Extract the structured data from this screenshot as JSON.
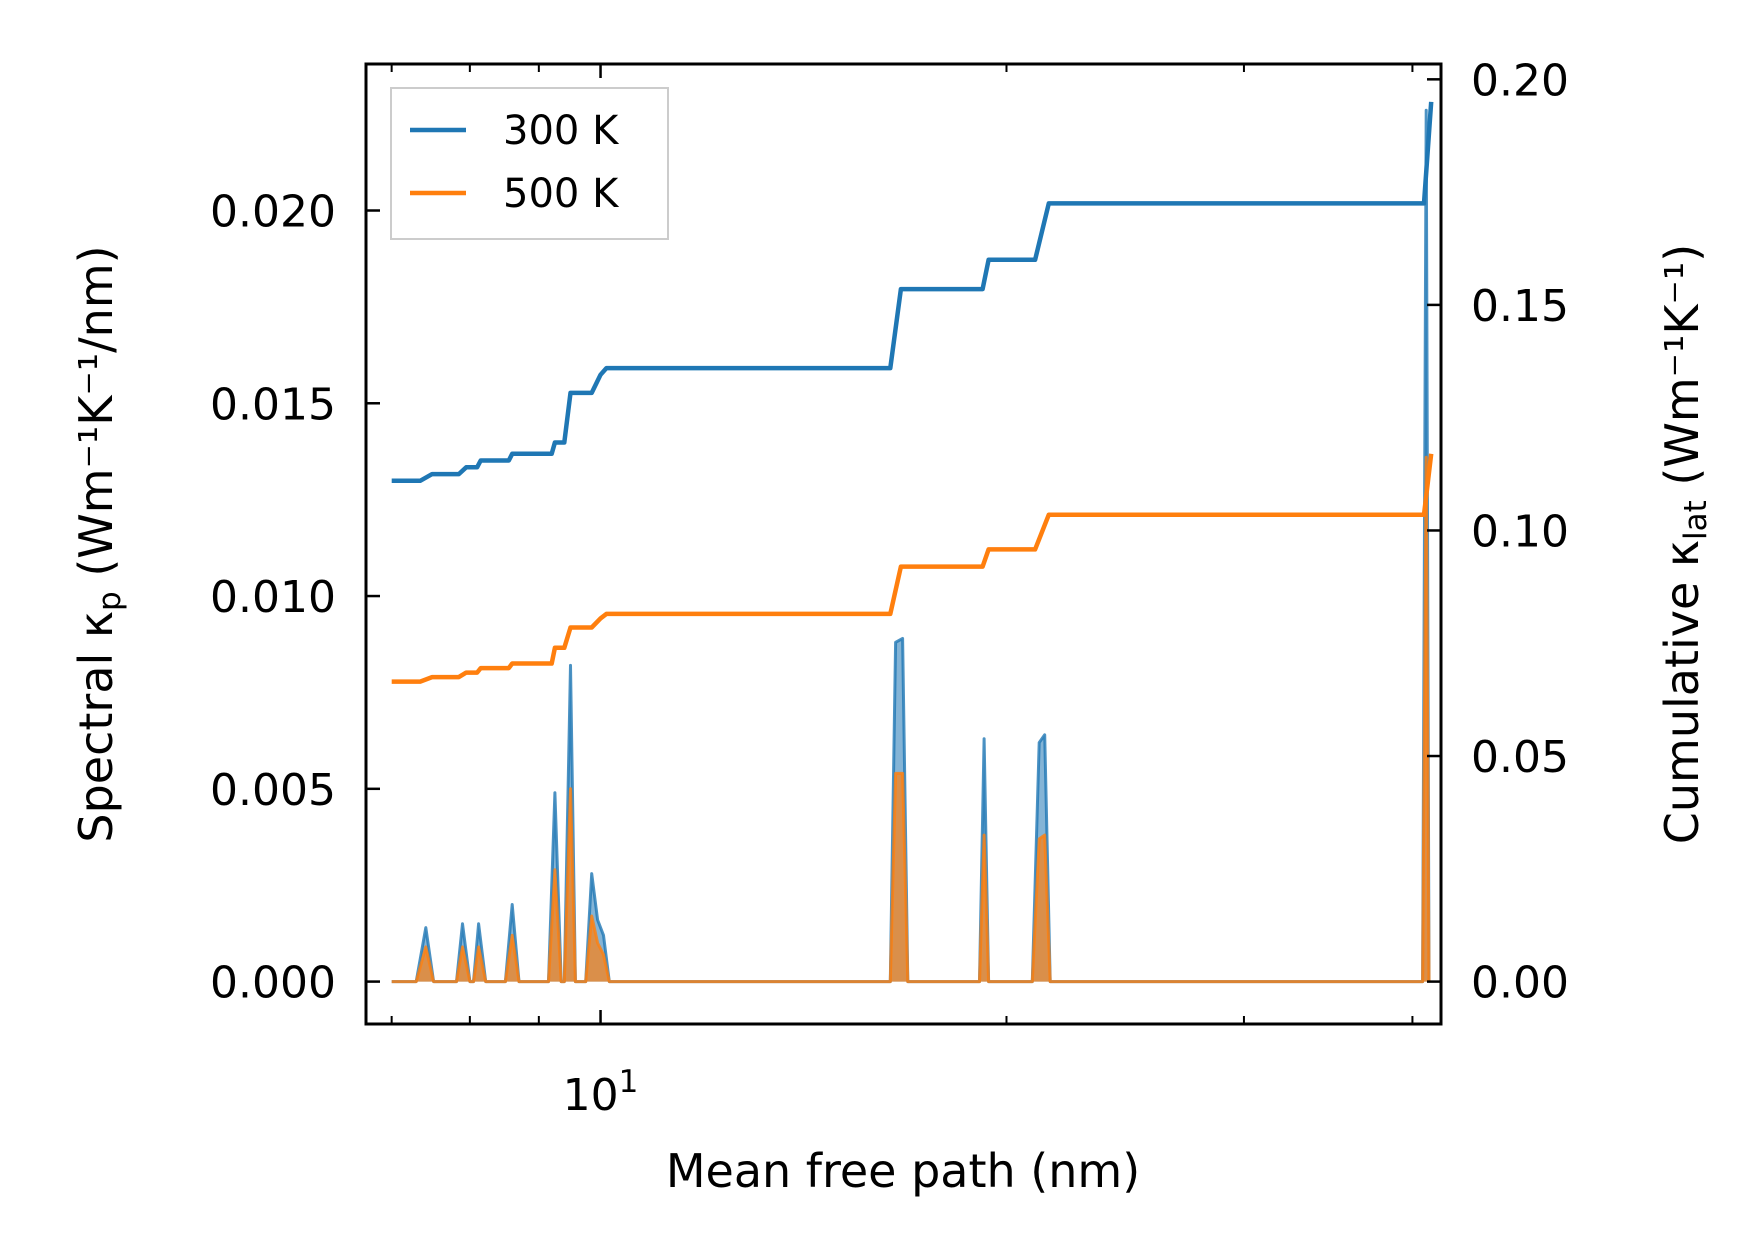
{
  "chart_data": {
    "type": "line",
    "title": "",
    "xlabel": "Mean free path (nm)",
    "ylabel_left": {
      "main": "Spectral κ",
      "sub": "p",
      "units": " (Wm⁻¹K⁻¹/nm)"
    },
    "ylabel_right": {
      "main": "Cumulative κ",
      "sub": "lat",
      "units": " (Wm⁻¹K⁻¹)"
    },
    "x_scale": "log",
    "x_range": [
      6.7,
      42.0
    ],
    "x_major_ticks": [
      {
        "value": 10,
        "base": "10",
        "exp": "1"
      }
    ],
    "x_minor_ticks": [
      7,
      8,
      9,
      20,
      30,
      40
    ],
    "y_left_range": [
      -0.0011,
      0.0238
    ],
    "y_left_ticks": [
      "0.000",
      "0.005",
      "0.010",
      "0.015",
      "0.020"
    ],
    "y_right_range": [
      -0.0094,
      0.2034
    ],
    "y_right_ticks": [
      "0.00",
      "0.05",
      "0.10",
      "0.15",
      "0.20"
    ],
    "colors": {
      "300K": "#1f77b4",
      "500K": "#ff7f0e"
    },
    "legend": {
      "position": "upper-left",
      "entries": [
        "300 K",
        "500 K"
      ]
    },
    "cumulative_series": [
      {
        "name": "300 K",
        "color": "#1f77b4",
        "points": [
          [
            7.0,
            0.111
          ],
          [
            7.35,
            0.111
          ],
          [
            7.5,
            0.1125
          ],
          [
            7.85,
            0.1125
          ],
          [
            7.95,
            0.114
          ],
          [
            8.1,
            0.114
          ],
          [
            8.15,
            0.1155
          ],
          [
            8.55,
            0.1155
          ],
          [
            8.6,
            0.117
          ],
          [
            9.2,
            0.117
          ],
          [
            9.25,
            0.1195
          ],
          [
            9.4,
            0.1195
          ],
          [
            9.5,
            0.1305
          ],
          [
            9.85,
            0.1305
          ],
          [
            10.0,
            0.1345
          ],
          [
            10.1,
            0.136
          ],
          [
            16.4,
            0.136
          ],
          [
            16.7,
            0.1535
          ],
          [
            19.2,
            0.1535
          ],
          [
            19.4,
            0.16
          ],
          [
            21.0,
            0.16
          ],
          [
            21.5,
            0.1725
          ],
          [
            40.8,
            0.1725
          ],
          [
            41.3,
            0.195
          ]
        ]
      },
      {
        "name": "500 K",
        "color": "#ff7f0e",
        "points": [
          [
            7.0,
            0.0665
          ],
          [
            7.35,
            0.0665
          ],
          [
            7.5,
            0.0675
          ],
          [
            7.85,
            0.0675
          ],
          [
            7.95,
            0.0685
          ],
          [
            8.1,
            0.0685
          ],
          [
            8.15,
            0.0695
          ],
          [
            8.55,
            0.0695
          ],
          [
            8.6,
            0.0705
          ],
          [
            9.2,
            0.0705
          ],
          [
            9.25,
            0.074
          ],
          [
            9.4,
            0.074
          ],
          [
            9.5,
            0.0785
          ],
          [
            9.85,
            0.0785
          ],
          [
            10.0,
            0.0805
          ],
          [
            10.1,
            0.0815
          ],
          [
            16.4,
            0.0815
          ],
          [
            16.7,
            0.092
          ],
          [
            19.2,
            0.092
          ],
          [
            19.4,
            0.0958
          ],
          [
            21.0,
            0.0958
          ],
          [
            21.5,
            0.1035
          ],
          [
            40.8,
            0.1035
          ],
          [
            41.3,
            0.117
          ]
        ]
      }
    ],
    "spectral_series": [
      {
        "name": "300 K",
        "color": "#1f77b4",
        "points": [
          [
            7.0,
            0
          ],
          [
            7.3,
            0
          ],
          [
            7.42,
            0.0014
          ],
          [
            7.52,
            0
          ],
          [
            7.82,
            0
          ],
          [
            7.9,
            0.0015
          ],
          [
            8.0,
            0
          ],
          [
            8.05,
            0
          ],
          [
            8.12,
            0.0015
          ],
          [
            8.22,
            0
          ],
          [
            8.5,
            0
          ],
          [
            8.6,
            0.002
          ],
          [
            8.7,
            0
          ],
          [
            9.15,
            0
          ],
          [
            9.25,
            0.0049
          ],
          [
            9.35,
            0
          ],
          [
            9.4,
            0
          ],
          [
            9.5,
            0.0082
          ],
          [
            9.58,
            0
          ],
          [
            9.75,
            0
          ],
          [
            9.85,
            0.0028
          ],
          [
            9.95,
            0.0016
          ],
          [
            10.05,
            0.0012
          ],
          [
            10.15,
            0
          ],
          [
            16.4,
            0
          ],
          [
            16.55,
            0.0088
          ],
          [
            16.75,
            0.0089
          ],
          [
            16.9,
            0
          ],
          [
            19.1,
            0
          ],
          [
            19.25,
            0.0063
          ],
          [
            19.4,
            0
          ],
          [
            20.9,
            0
          ],
          [
            21.15,
            0.0062
          ],
          [
            21.35,
            0.0064
          ],
          [
            21.55,
            0
          ],
          [
            40.7,
            0
          ],
          [
            40.95,
            0.0226
          ],
          [
            41.15,
            0
          ]
        ]
      },
      {
        "name": "500 K",
        "color": "#ff7f0e",
        "points": [
          [
            7.0,
            0
          ],
          [
            7.3,
            0
          ],
          [
            7.42,
            0.0009
          ],
          [
            7.52,
            0
          ],
          [
            7.82,
            0
          ],
          [
            7.9,
            0.0009
          ],
          [
            8.0,
            0
          ],
          [
            8.05,
            0
          ],
          [
            8.12,
            0.0009
          ],
          [
            8.22,
            0
          ],
          [
            8.5,
            0
          ],
          [
            8.6,
            0.0012
          ],
          [
            8.7,
            0
          ],
          [
            9.15,
            0
          ],
          [
            9.25,
            0.0029
          ],
          [
            9.35,
            0
          ],
          [
            9.4,
            0
          ],
          [
            9.5,
            0.005
          ],
          [
            9.58,
            0
          ],
          [
            9.75,
            0
          ],
          [
            9.85,
            0.0017
          ],
          [
            9.95,
            0.001
          ],
          [
            10.05,
            0.0007
          ],
          [
            10.15,
            0
          ],
          [
            16.4,
            0
          ],
          [
            16.55,
            0.0054
          ],
          [
            16.75,
            0.0054
          ],
          [
            16.9,
            0
          ],
          [
            19.1,
            0
          ],
          [
            19.25,
            0.0038
          ],
          [
            19.4,
            0
          ],
          [
            20.9,
            0
          ],
          [
            21.15,
            0.0037
          ],
          [
            21.35,
            0.0038
          ],
          [
            21.55,
            0
          ],
          [
            40.7,
            0
          ],
          [
            40.95,
            0.0136
          ],
          [
            41.15,
            0
          ]
        ]
      }
    ]
  }
}
